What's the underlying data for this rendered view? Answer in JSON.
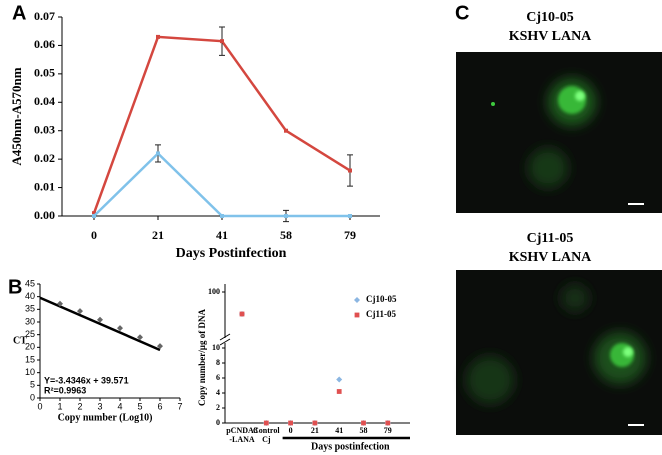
{
  "panel_labels": [
    "A",
    "B",
    "C"
  ],
  "images": [
    {
      "title": "Cj10-05",
      "subtitle": "KSHV LANA"
    },
    {
      "title": "Cj11-05",
      "subtitle": "KSHV LANA"
    }
  ],
  "chart_data": [
    {
      "type": "line",
      "y_label": "A450nm-A570nm",
      "x_label": "Days Postinfection",
      "categories": [
        "0",
        "21",
        "41",
        "58",
        "79"
      ],
      "series": [
        {
          "color": "#d4473f",
          "values": [
            0.001,
            0.063,
            0.0615,
            0.03,
            0.016
          ],
          "errors": [
            null,
            null,
            0.005,
            null,
            0.0055
          ]
        },
        {
          "color": "#80c2ea",
          "values": [
            0.0,
            0.022,
            0.0,
            0.0,
            0.0
          ],
          "errors": [
            null,
            0.003,
            null,
            0.002,
            null
          ]
        }
      ],
      "ylim": [
        0,
        0.07
      ],
      "yticks": [
        {
          "value": 0,
          "label": "0.00"
        },
        {
          "value": 0.01,
          "label": "0.01"
        },
        {
          "value": 0.02,
          "label": "0.02"
        },
        {
          "value": 0.03,
          "label": "0.03"
        },
        {
          "value": 0.04,
          "label": "0.04"
        },
        {
          "value": 0.05,
          "label": "0.05"
        },
        {
          "value": 0.06,
          "label": "0.06"
        },
        {
          "value": 0.07,
          "label": "0.07"
        }
      ]
    },
    {
      "type": "scatter",
      "y_label": "CT",
      "x_label": "Copy number (Log10)",
      "x": [
        1,
        2,
        3,
        4,
        5,
        6
      ],
      "values": [
        37.2,
        34.3,
        30.9,
        27.6,
        24.0,
        20.5
      ],
      "color": "#666666",
      "fit": {
        "x": [
          0,
          6
        ],
        "values": [
          39.571,
          18.963
        ],
        "color": "#000000"
      },
      "annotations": [
        "Y=-3.4346x + 39.571",
        "R²=0.9963"
      ],
      "xlim": [
        0,
        7
      ],
      "xticks": [
        0,
        1,
        2,
        3,
        4,
        5,
        6,
        7
      ],
      "ylim": [
        0,
        45
      ],
      "yticks": [
        0,
        5,
        10,
        15,
        20,
        25,
        30,
        35,
        40,
        45
      ]
    },
    {
      "type": "dot",
      "y_label": "Copy number/µg of DNA",
      "group_label": "Days  postinfection",
      "categories": [
        "pCNDA3 -LANA",
        "Control Cj",
        "0",
        "21",
        "41",
        "58",
        "79"
      ],
      "series": [
        {
          "name": "Cj10-05",
          "color": "#8bb6e2",
          "marker": "diamond",
          "values": [
            90,
            0,
            0,
            0,
            5.8,
            0,
            0
          ]
        },
        {
          "name": "Cj11-05",
          "color": "#e05050",
          "marker": "square",
          "values": [
            90,
            0,
            0,
            0,
            4.2,
            0,
            0
          ]
        }
      ],
      "ylim": [
        0,
        100
      ],
      "ybreak": [
        10,
        80
      ],
      "yticks": [
        0,
        2,
        4,
        6,
        8,
        10,
        100
      ],
      "legend": "top-right"
    }
  ]
}
